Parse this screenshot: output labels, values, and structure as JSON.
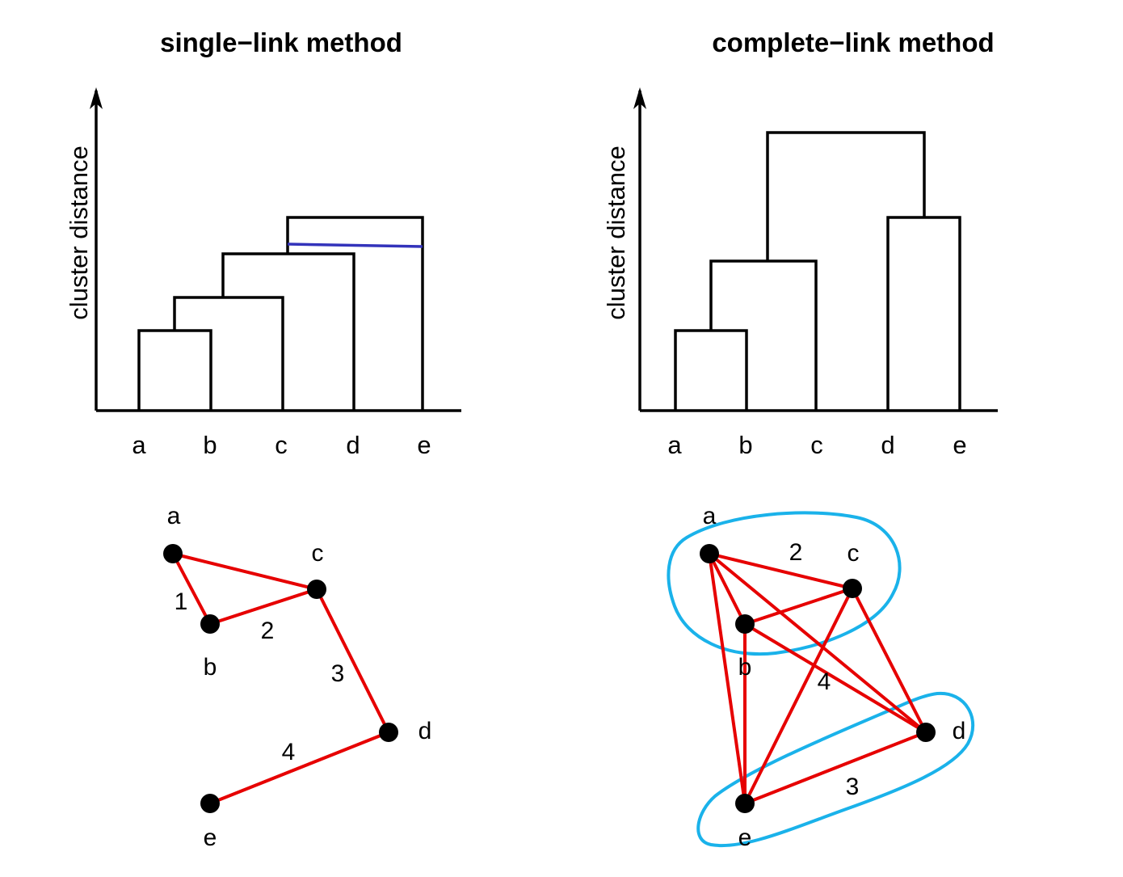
{
  "left": {
    "title": "single−link method",
    "ylabel": "cluster distance",
    "leaves": [
      "a",
      "b",
      "c",
      "d",
      "e"
    ],
    "merges": [
      {
        "left": "a",
        "right": "b",
        "height": 1
      },
      {
        "left": "ab",
        "right": "c",
        "height": 2
      },
      {
        "left": "abc",
        "right": "d",
        "height": 3
      },
      {
        "left": "abcd",
        "right": "e",
        "height": 4
      }
    ],
    "graph": {
      "nodes": [
        "a",
        "b",
        "c",
        "d",
        "e"
      ],
      "edges": [
        {
          "from": "a",
          "to": "b",
          "label": "1"
        },
        {
          "from": "b",
          "to": "c",
          "label": "2"
        },
        {
          "from": "a",
          "to": "c",
          "label": ""
        },
        {
          "from": "c",
          "to": "d",
          "label": "3"
        },
        {
          "from": "d",
          "to": "e",
          "label": "4"
        }
      ]
    }
  },
  "right": {
    "title": "complete−link method",
    "ylabel": "cluster distance",
    "leaves": [
      "a",
      "b",
      "c",
      "d",
      "e"
    ],
    "merges": [
      {
        "left": "a",
        "right": "b",
        "height": 1
      },
      {
        "left": "ab",
        "right": "c",
        "height": 2
      },
      {
        "left": "d",
        "right": "e",
        "height": 3
      },
      {
        "left": "abc",
        "right": "de",
        "height": 4
      }
    ],
    "graph": {
      "nodes": [
        "a",
        "b",
        "c",
        "d",
        "e"
      ],
      "edges": [
        {
          "from": "a",
          "to": "c",
          "label": "2"
        },
        {
          "from": "a",
          "to": "b",
          "label": ""
        },
        {
          "from": "a",
          "to": "d",
          "label": ""
        },
        {
          "from": "a",
          "to": "e",
          "label": ""
        },
        {
          "from": "b",
          "to": "c",
          "label": ""
        },
        {
          "from": "b",
          "to": "d",
          "label": "4"
        },
        {
          "from": "b",
          "to": "e",
          "label": ""
        },
        {
          "from": "c",
          "to": "d",
          "label": ""
        },
        {
          "from": "c",
          "to": "e",
          "label": ""
        },
        {
          "from": "e",
          "to": "d",
          "label": "3"
        }
      ],
      "clusters": [
        [
          "a",
          "b",
          "c"
        ],
        [
          "d",
          "e"
        ]
      ]
    }
  },
  "colors": {
    "cut_line": "#3333bb",
    "graph_edges": "#e60000",
    "cluster_outline": "#1ab2ea",
    "nodes": "#000000"
  }
}
